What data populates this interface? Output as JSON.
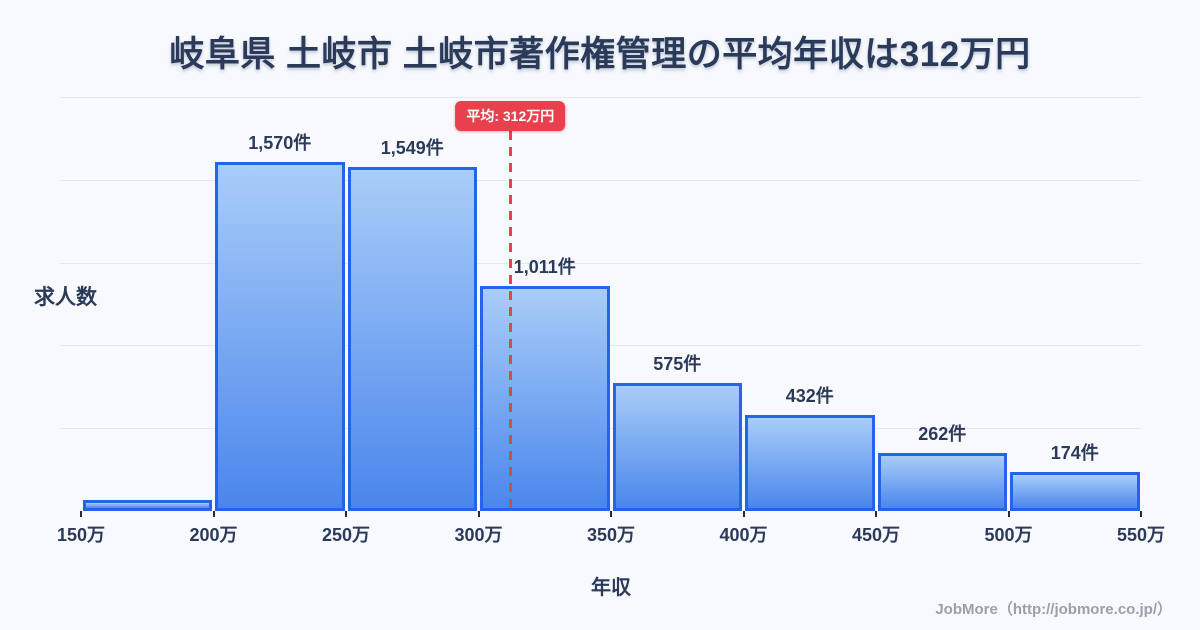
{
  "page": {
    "background": "#f7f9fc"
  },
  "title": "岐阜県 土岐市 土岐市著作権管理の平均年収は312万円",
  "footer": {
    "credit": "JobMore（http://jobmore.co.jp/）"
  },
  "chart_data": {
    "type": "bar",
    "title": "岐阜県 土岐市 土岐市著作権管理の平均年収は312万円",
    "xlabel": "年収",
    "ylabel": "求人数",
    "categories": [
      "150万-200万",
      "200万-250万",
      "250万-300万",
      "300万-350万",
      "350万-400万",
      "400万-450万",
      "450万-500万",
      "500万-550万"
    ],
    "values": [
      50,
      1570,
      1549,
      1011,
      575,
      432,
      262,
      174
    ],
    "bar_labels": [
      "",
      "1,570件",
      "1,549件",
      "1,011件",
      "575件",
      "432件",
      "262件",
      "174件"
    ],
    "x_tick_labels": [
      "150万",
      "200万",
      "250万",
      "300万",
      "350万",
      "400万",
      "450万",
      "500万",
      "550万"
    ],
    "xlim_man_yen": [
      150,
      550
    ],
    "ylim": [
      0,
      1860
    ],
    "grid": true,
    "legend": "none",
    "average_line": {
      "value_man_yen": 312,
      "label": "平均: 312万円"
    },
    "colors": {
      "background": "#f7f9fc",
      "bar_fill_top": "#a9cdf8",
      "bar_fill_bottom": "#4a86ec",
      "bar_border": "#2563eb",
      "average_red": "#e8404d",
      "badge_text": "#ffffff",
      "text_dark": "#2b3a59",
      "grid_line": "#e4e8f0",
      "tick": "#222b3a",
      "footer_gray": "#9aa0ab"
    }
  }
}
